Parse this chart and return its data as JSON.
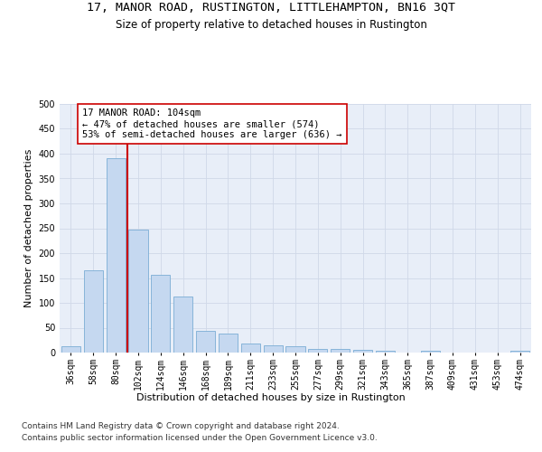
{
  "title": "17, MANOR ROAD, RUSTINGTON, LITTLEHAMPTON, BN16 3QT",
  "subtitle": "Size of property relative to detached houses in Rustington",
  "xlabel": "Distribution of detached houses by size in Rustington",
  "ylabel": "Number of detached properties",
  "categories": [
    "36sqm",
    "58sqm",
    "80sqm",
    "102sqm",
    "124sqm",
    "146sqm",
    "168sqm",
    "189sqm",
    "211sqm",
    "233sqm",
    "255sqm",
    "277sqm",
    "299sqm",
    "321sqm",
    "343sqm",
    "365sqm",
    "387sqm",
    "409sqm",
    "431sqm",
    "453sqm",
    "474sqm"
  ],
  "values": [
    12,
    165,
    390,
    247,
    156,
    113,
    43,
    39,
    18,
    15,
    13,
    8,
    7,
    5,
    3,
    0,
    3,
    0,
    0,
    0,
    3
  ],
  "bar_color": "#c5d8f0",
  "bar_edge_color": "#7aadd4",
  "vline_index": 2.5,
  "vline_color": "#cc0000",
  "annotation_text": "17 MANOR ROAD: 104sqm\n← 47% of detached houses are smaller (574)\n53% of semi-detached houses are larger (636) →",
  "annotation_box_color": "#ffffff",
  "annotation_box_edge_color": "#cc0000",
  "ylim": [
    0,
    500
  ],
  "yticks": [
    0,
    50,
    100,
    150,
    200,
    250,
    300,
    350,
    400,
    450,
    500
  ],
  "grid_color": "#d0d8e8",
  "background_color": "#e8eef8",
  "footer_line1": "Contains HM Land Registry data © Crown copyright and database right 2024.",
  "footer_line2": "Contains public sector information licensed under the Open Government Licence v3.0.",
  "title_fontsize": 9.5,
  "subtitle_fontsize": 8.5,
  "axis_label_fontsize": 8,
  "tick_fontsize": 7,
  "annotation_fontsize": 7.5,
  "footer_fontsize": 6.5
}
